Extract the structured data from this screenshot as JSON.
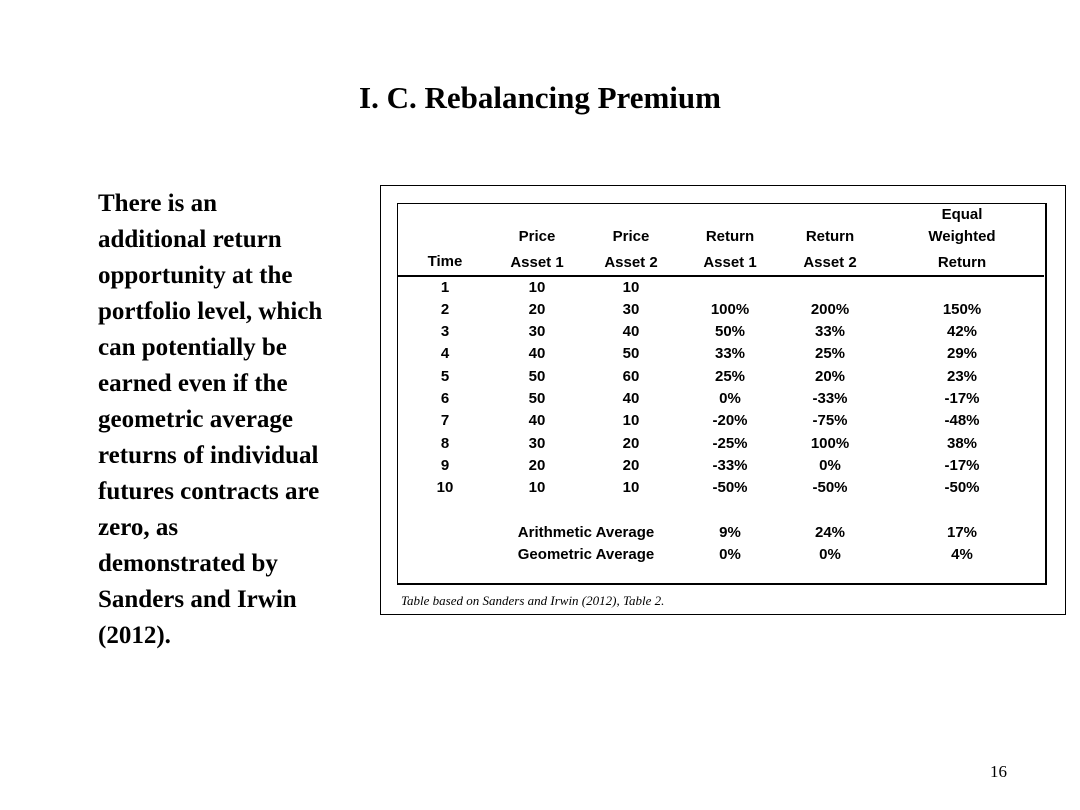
{
  "slide": {
    "title": "I.  C.  Rebalancing Premium",
    "body_lines": [
      "There is an",
      "additional return",
      "opportunity at the",
      "portfolio level, which",
      "can potentially be",
      "earned even if the",
      "geometric average",
      "returns of individual",
      "futures contracts are",
      "zero, as",
      "demonstrated by",
      "Sanders and Irwin",
      "(2012)."
    ],
    "page_number": "16"
  },
  "table": {
    "header_row1": [
      "",
      "",
      "",
      "",
      "",
      "Equal"
    ],
    "header_row2": [
      "",
      "Price",
      "Price",
      "Return",
      "Return",
      "Weighted"
    ],
    "header_row3": [
      "Time",
      "Asset 1",
      "Asset 2",
      "Asset 1",
      "Asset 2",
      "Return"
    ],
    "rows": [
      [
        "1",
        "10",
        "10",
        "",
        "",
        ""
      ],
      [
        "2",
        "20",
        "30",
        "100%",
        "200%",
        "150%"
      ],
      [
        "3",
        "30",
        "40",
        "50%",
        "33%",
        "42%"
      ],
      [
        "4",
        "40",
        "50",
        "33%",
        "25%",
        "29%"
      ],
      [
        "5",
        "50",
        "60",
        "25%",
        "20%",
        "23%"
      ],
      [
        "6",
        "50",
        "40",
        "0%",
        "-33%",
        "-17%"
      ],
      [
        "7",
        "40",
        "10",
        "-20%",
        "-75%",
        "-48%"
      ],
      [
        "8",
        "30",
        "20",
        "-25%",
        "100%",
        "38%"
      ],
      [
        "9",
        "20",
        "20",
        "-33%",
        "0%",
        "-17%"
      ],
      [
        "10",
        "10",
        "10",
        "-50%",
        "-50%",
        "-50%"
      ]
    ],
    "summary": [
      {
        "label": "Arithmetic Average",
        "return1": "9%",
        "return2": "24%",
        "equal": "17%"
      },
      {
        "label": "Geometric Average",
        "return1": "0%",
        "return2": "0%",
        "equal": "4%"
      }
    ],
    "caption": "Table based on Sanders and Irwin (2012), Table 2."
  }
}
